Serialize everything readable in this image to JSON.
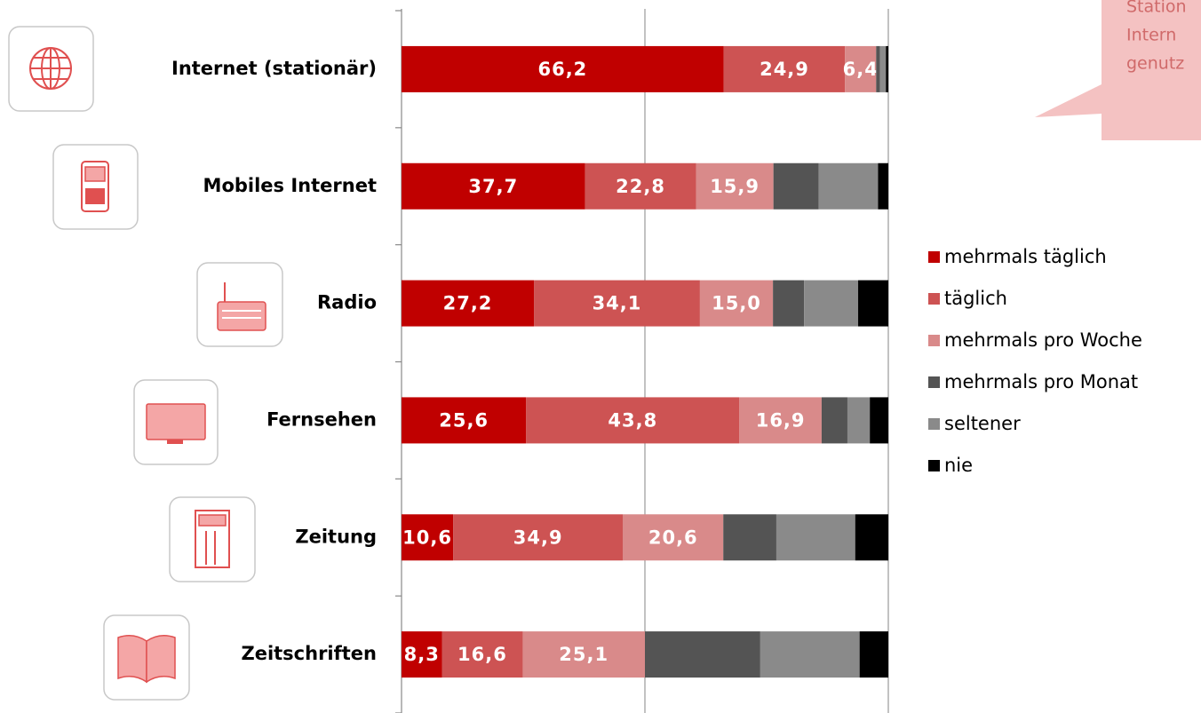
{
  "chart_data": {
    "type": "stacked_barh",
    "categories": [
      "Internet (stationär)",
      "Mobiles Internet",
      "Radio",
      "Fernsehen",
      "Zeitung",
      "Zeitschriften"
    ],
    "series": [
      {
        "name": "mehrmals täglich",
        "color": "#c00000",
        "values": [
          66.2,
          37.7,
          27.2,
          25.6,
          10.6,
          8.3
        ],
        "value_labels": [
          "66,2",
          "37,7",
          "27,2",
          "25,6",
          "10,6",
          "8,3"
        ]
      },
      {
        "name": "täglich",
        "color": "#cd5353",
        "values": [
          24.9,
          22.8,
          34.1,
          43.8,
          34.9,
          16.6
        ],
        "value_labels": [
          "24,9",
          "22,8",
          "34,1",
          "43,8",
          "34,9",
          "16,6"
        ]
      },
      {
        "name": "mehrmals pro Woche",
        "color": "#d98a8a",
        "values": [
          6.4,
          15.9,
          15.0,
          16.9,
          20.6,
          25.1
        ],
        "value_labels": [
          "6,4",
          "15,9",
          "15,0",
          "16,9",
          "20,6",
          "25,1"
        ]
      },
      {
        "name": "mehrmals pro Monat",
        "color": "#545454",
        "values": [
          0.8,
          9.3,
          6.4,
          5.3,
          10.9,
          23.7
        ]
      },
      {
        "name": "seltener",
        "color": "#8a8a8a",
        "values": [
          1.2,
          12.2,
          11.1,
          4.6,
          16.2,
          20.4
        ]
      },
      {
        "name": "nie",
        "color": "#000000",
        "values": [
          0.5,
          2.1,
          6.2,
          3.8,
          6.8,
          5.9
        ]
      }
    ],
    "xlim": [
      0,
      100
    ],
    "xticks": [
      0,
      50,
      100
    ],
    "grid": true,
    "annotation": [
      "Station",
      "Intern",
      "genutz"
    ]
  }
}
